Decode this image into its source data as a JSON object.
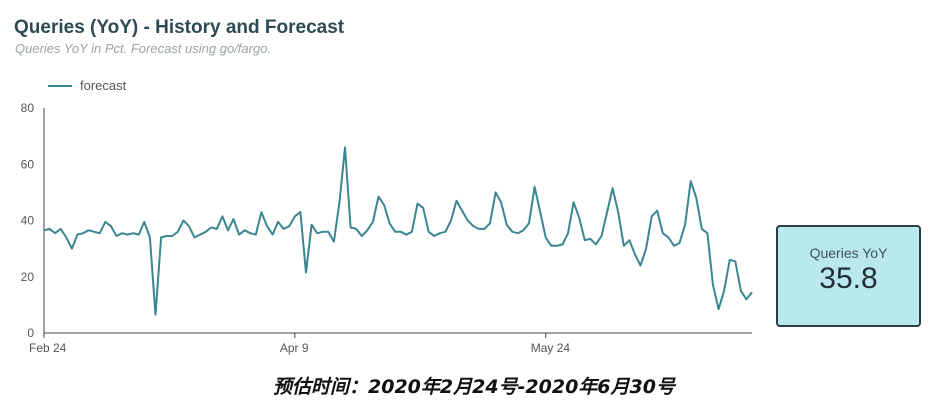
{
  "title": "Queries (YoY) - History and Forecast",
  "subtitle": "Queries YoY in Pct. Forecast using go/fargo.",
  "scorecard": {
    "label": "Queries YoY",
    "value": "35.8"
  },
  "caption": "预估时间：2020年2月24号-2020年6月30号",
  "colors": {
    "line": "#3a8691",
    "scorecard_bg": "#b9e8ee",
    "title": "#2e4b54"
  },
  "chart_data": {
    "type": "line",
    "legend": "top-left",
    "grid": false,
    "x_start": "2020-02-24",
    "xlim": [
      "2020-02-24",
      "2020-06-30"
    ],
    "ylim": [
      0,
      80
    ],
    "yticks": [
      "0",
      "20",
      "40",
      "60",
      "80"
    ],
    "xticks": [
      {
        "label": "Feb 24",
        "date": "2020-02-24"
      },
      {
        "label": "Apr 9",
        "date": "2020-04-09"
      },
      {
        "label": "May 24",
        "date": "2020-05-24"
      }
    ],
    "series": [
      {
        "name": "forecast",
        "values": [
          36.5,
          37,
          35.5,
          37,
          34,
          30,
          35,
          35.5,
          36.5,
          36,
          35.5,
          39.5,
          38,
          34.5,
          35.5,
          35,
          35.5,
          35,
          39.5,
          34,
          6.5,
          34,
          34.5,
          34.5,
          36,
          40,
          38,
          34,
          35,
          36,
          37.5,
          37,
          41.5,
          36.5,
          40.5,
          35,
          36.5,
          35.5,
          35,
          43,
          38,
          35,
          39.5,
          37,
          38,
          41.5,
          43,
          21.5,
          38.5,
          35.5,
          36,
          36,
          32.5,
          46.5,
          66,
          37.5,
          37,
          34.5,
          36.5,
          39.5,
          48.5,
          45.5,
          39,
          36,
          36,
          35,
          36,
          46,
          44.5,
          36,
          34.5,
          35.5,
          36,
          40,
          47,
          43.5,
          40,
          38,
          37,
          37,
          39,
          50,
          46.5,
          38.5,
          36,
          35.5,
          36.5,
          39,
          52,
          43,
          34,
          31,
          31,
          31.5,
          35.5,
          46.5,
          41,
          33,
          33.5,
          31.5,
          34.5,
          43,
          51.5,
          43,
          31,
          33,
          28,
          24,
          30,
          41.5,
          43.5,
          35.5,
          34,
          31,
          32,
          38.5,
          54,
          48,
          37,
          35.5,
          17,
          8.5,
          15,
          26,
          25.5,
          15,
          12,
          14.5
        ]
      }
    ]
  }
}
